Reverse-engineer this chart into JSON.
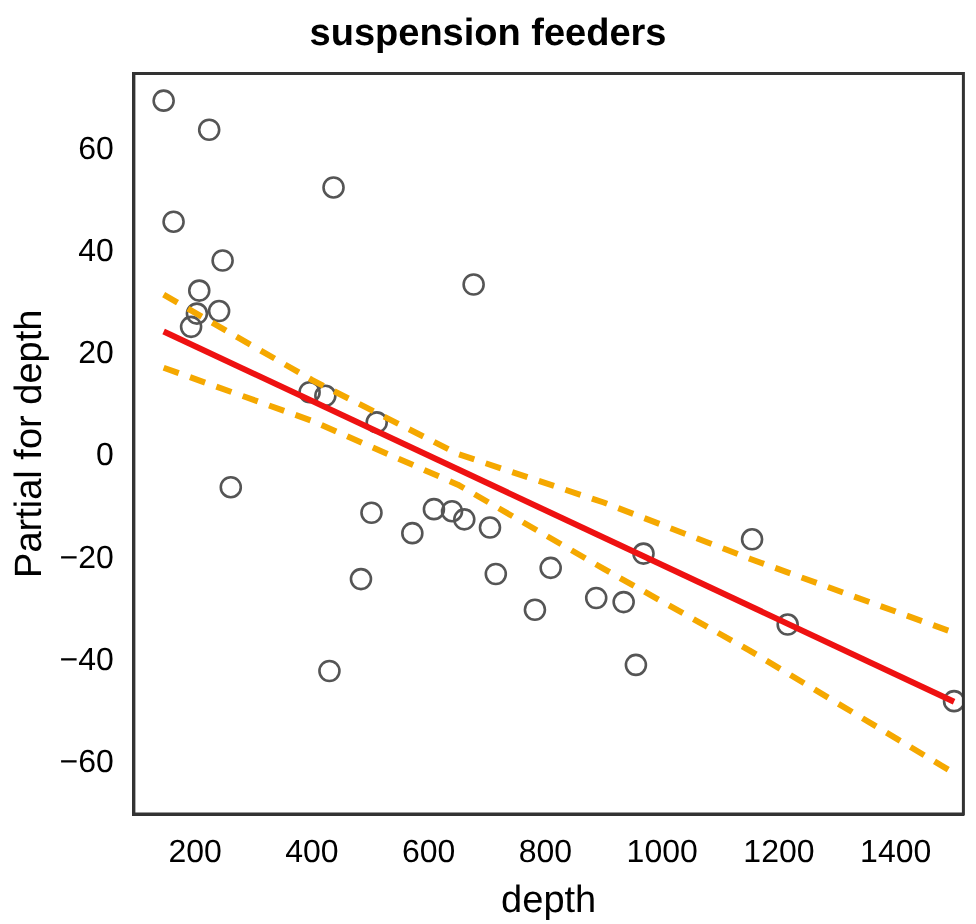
{
  "chart_data": {
    "type": "scatter",
    "title": "suspension feeders",
    "xlabel": "depth",
    "ylabel": "Partial for depth",
    "xlim": [
      95,
      1516
    ],
    "ylim": [
      -70,
      75
    ],
    "xticks": [
      200,
      400,
      600,
      800,
      1000,
      1200,
      1400
    ],
    "yticks": [
      -60,
      -40,
      -20,
      0,
      20,
      40,
      60
    ],
    "grid": false,
    "legend": false,
    "series": [
      {
        "color": "#555555",
        "marker": "circle",
        "x": [
          146,
          163,
          224,
          207,
          193,
          203,
          241,
          247,
          437,
          677,
          396,
          423,
          511,
          261,
          502,
          572,
          430,
          484,
          609,
          640,
          661,
          705,
          715,
          782,
          809,
          887,
          934,
          955,
          968,
          1154,
          1215,
          1500
        ],
        "values": [
          69.7,
          46,
          64,
          32.5,
          25.4,
          28,
          28.5,
          38.4,
          52.7,
          33.7,
          12.6,
          11.9,
          6.7,
          -6,
          -11,
          -15,
          -42,
          -24,
          -10.3,
          -10.7,
          -12.3,
          -13.9,
          -23,
          -30,
          -21.8,
          -27.7,
          -28.5,
          -40.8,
          -19,
          -16.2,
          -32.9,
          -47.9
        ]
      },
      {
        "type": "line",
        "color": "#ee1111",
        "marker": "none",
        "line_style": "solid",
        "x": [
          146,
          1500
        ],
        "values": [
          24.5,
          -48
        ]
      },
      {
        "type": "line",
        "color": "#f5a800",
        "marker": "none",
        "line_style": "dashed",
        "x": [
          146,
          400,
          650,
          900,
          1150,
          1500
        ],
        "values": [
          31.7,
          15,
          0.5,
          -9,
          -20,
          -34.5
        ]
      },
      {
        "type": "line",
        "color": "#f5a800",
        "marker": "none",
        "line_style": "dashed",
        "x": [
          146,
          400,
          650,
          900,
          1150,
          1500
        ],
        "values": [
          17.4,
          7,
          -5.5,
          -22,
          -38,
          -62
        ]
      }
    ]
  }
}
